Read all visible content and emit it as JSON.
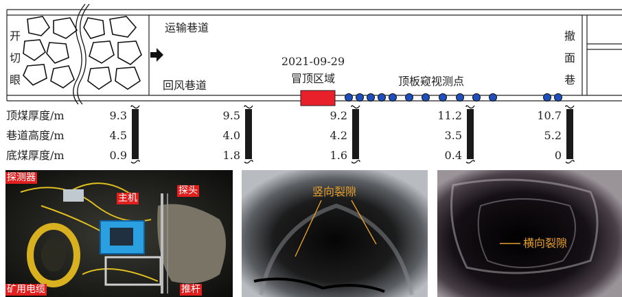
{
  "labels": {
    "open_cut": [
      "开",
      "切",
      "眼"
    ],
    "retreat": [
      "撤",
      "面",
      "巷"
    ],
    "haulage": "运输巷道",
    "return": "回风巷道",
    "date": "2021-09-29",
    "roof_fall": "冒顶区域",
    "observation": "顶板窥视测点"
  },
  "rows": [
    "顶煤厚度/m",
    "巷道高度/m",
    "底煤厚度/m"
  ],
  "stations": [
    {
      "top": "9.3",
      "height": "4.5",
      "bottom": "0.9"
    },
    {
      "top": "9.5",
      "height": "4.0",
      "bottom": "1.8"
    },
    {
      "top": "9.2",
      "height": "4.2",
      "bottom": "1.6"
    },
    {
      "top": "11.2",
      "height": "3.5",
      "bottom": "0.4"
    },
    {
      "top": "10.7",
      "height": "5.2",
      "bottom": "0"
    }
  ],
  "photos": {
    "equipment": {
      "detector": "探测器",
      "host": "主机",
      "probe": "探头",
      "cable": "矿用电缆",
      "pushrod": "推杆"
    },
    "vertical_crack": "竖向裂隙",
    "horizontal_crack": "横向裂隙"
  },
  "colors": {
    "roof_fall": "#e8202a",
    "point": "#1f4fbf",
    "crack_text": "#e8a02c",
    "label_bg": "#e0201f"
  }
}
